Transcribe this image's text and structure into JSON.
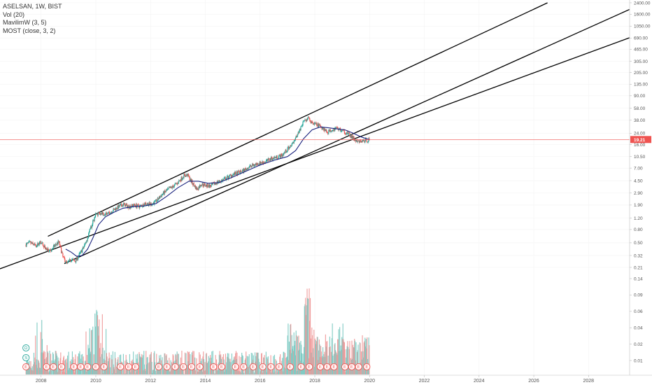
{
  "legend": {
    "symbol": "ASELSAN, 1W, BIST",
    "vol": "Vol (20)",
    "mavilim": "MavilimW (3, 5)",
    "most": "MOST (close, 3, 2)"
  },
  "colors": {
    "up": "#26a69a",
    "down": "#ef5350",
    "ma": "#1a237e",
    "channel": "#000000",
    "price_line": "#ef5350",
    "vol_up": "#80cbc4",
    "vol_down": "#ef9a9a"
  },
  "chart_data": {
    "type": "candlestick",
    "title": "ASELSAN, 1W, BIST",
    "price_axis_labels": [
      "2400.00",
      "1600.00",
      "1050.00",
      "690.00",
      "465.00",
      "305.00",
      "205.00",
      "135.00",
      "90.00",
      "58.00",
      "38.00",
      "24.00",
      "16.00",
      "10.50",
      "7.00",
      "4.50",
      "2.90",
      "1.90",
      "1.20",
      "0.80",
      "0.50",
      "0.32",
      "0.21"
    ],
    "volume_axis_labels": [
      "0.14",
      "0.09",
      "0.06",
      "0.04",
      "0.02",
      "0.01"
    ],
    "x_labels": [
      "2008",
      "2010",
      "2012",
      "2014",
      "2016",
      "2018",
      "2020",
      "2022",
      "2024",
      "2026",
      "2028"
    ],
    "last_price": "19.21",
    "price_scale": "log",
    "x_range": [
      2006.5,
      2029.5
    ],
    "price_path": [
      [
        2007.45,
        0.47
      ],
      [
        2007.6,
        0.5
      ],
      [
        2007.8,
        0.45
      ],
      [
        2008.0,
        0.5
      ],
      [
        2008.15,
        0.42
      ],
      [
        2008.3,
        0.37
      ],
      [
        2008.5,
        0.45
      ],
      [
        2008.65,
        0.52
      ],
      [
        2008.8,
        0.3
      ],
      [
        2008.95,
        0.24
      ],
      [
        2009.1,
        0.28
      ],
      [
        2009.25,
        0.26
      ],
      [
        2009.4,
        0.33
      ],
      [
        2009.55,
        0.42
      ],
      [
        2009.7,
        0.6
      ],
      [
        2009.85,
        0.95
      ],
      [
        2010.0,
        1.35
      ],
      [
        2010.2,
        1.45
      ],
      [
        2010.4,
        1.35
      ],
      [
        2010.6,
        1.55
      ],
      [
        2010.8,
        1.75
      ],
      [
        2011.0,
        1.95
      ],
      [
        2011.2,
        1.8
      ],
      [
        2011.4,
        1.9
      ],
      [
        2011.6,
        1.8
      ],
      [
        2011.8,
        2.0
      ],
      [
        2012.0,
        1.95
      ],
      [
        2012.2,
        2.15
      ],
      [
        2012.4,
        2.7
      ],
      [
        2012.6,
        3.2
      ],
      [
        2012.8,
        3.6
      ],
      [
        2013.0,
        4.2
      ],
      [
        2013.2,
        5.3
      ],
      [
        2013.35,
        5.5
      ],
      [
        2013.5,
        4.3
      ],
      [
        2013.7,
        3.3
      ],
      [
        2013.85,
        4.0
      ],
      [
        2014.0,
        3.8
      ],
      [
        2014.2,
        3.7
      ],
      [
        2014.4,
        4.2
      ],
      [
        2014.6,
        4.5
      ],
      [
        2014.8,
        5.0
      ],
      [
        2015.0,
        5.6
      ],
      [
        2015.2,
        5.9
      ],
      [
        2015.4,
        6.4
      ],
      [
        2015.6,
        7.3
      ],
      [
        2015.8,
        7.9
      ],
      [
        2016.0,
        8.4
      ],
      [
        2016.2,
        8.8
      ],
      [
        2016.4,
        9.8
      ],
      [
        2016.6,
        10.3
      ],
      [
        2016.8,
        11.0
      ],
      [
        2017.0,
        13.5
      ],
      [
        2017.2,
        17.0
      ],
      [
        2017.4,
        25.0
      ],
      [
        2017.6,
        36.0
      ],
      [
        2017.75,
        40.0
      ],
      [
        2017.9,
        34.0
      ],
      [
        2018.1,
        32.0
      ],
      [
        2018.3,
        29.0
      ],
      [
        2018.45,
        25.0
      ],
      [
        2018.6,
        27.0
      ],
      [
        2018.8,
        29.0
      ],
      [
        2019.0,
        26.0
      ],
      [
        2019.2,
        24.0
      ],
      [
        2019.4,
        20.0
      ],
      [
        2019.55,
        17.5
      ],
      [
        2019.7,
        18.0
      ],
      [
        2019.85,
        18.5
      ],
      [
        2020.0,
        19.21
      ]
    ],
    "mavilim_path": [
      [
        2008.9,
        0.4
      ],
      [
        2009.1,
        0.36
      ],
      [
        2009.3,
        0.31
      ],
      [
        2009.5,
        0.32
      ],
      [
        2009.7,
        0.4
      ],
      [
        2009.9,
        0.6
      ],
      [
        2010.1,
        0.95
      ],
      [
        2010.35,
        1.25
      ],
      [
        2010.7,
        1.5
      ],
      [
        2011.0,
        1.7
      ],
      [
        2011.4,
        1.8
      ],
      [
        2011.8,
        1.85
      ],
      [
        2012.2,
        2.0
      ],
      [
        2012.6,
        2.6
      ],
      [
        2013.0,
        3.5
      ],
      [
        2013.4,
        4.4
      ],
      [
        2013.75,
        4.4
      ],
      [
        2014.1,
        4.1
      ],
      [
        2014.5,
        4.2
      ],
      [
        2015.0,
        5.1
      ],
      [
        2015.5,
        6.3
      ],
      [
        2016.0,
        7.8
      ],
      [
        2016.5,
        9.2
      ],
      [
        2017.0,
        10.5
      ],
      [
        2017.3,
        13.0
      ],
      [
        2017.6,
        20.0
      ],
      [
        2017.9,
        27.0
      ],
      [
        2018.2,
        30.0
      ],
      [
        2018.5,
        29.0
      ],
      [
        2018.8,
        28.0
      ],
      [
        2019.1,
        27.0
      ],
      [
        2019.4,
        24.0
      ],
      [
        2019.7,
        21.0
      ],
      [
        2020.0,
        19.0
      ]
    ],
    "channel_lines": [
      {
        "from": [
          2006.5,
          0.2
        ],
        "to": [
          2029.5,
          700.0
        ]
      },
      {
        "from": [
          2008.85,
          0.24
        ],
        "to": [
          2029.5,
          1900.0
        ]
      },
      {
        "from": [
          2008.25,
          0.63
        ],
        "to": [
          2026.5,
          2400.0
        ]
      }
    ],
    "events": [
      {
        "x": 2007.45,
        "label": "D"
      },
      {
        "x": 2007.45,
        "label": "S"
      },
      {
        "x": 2007.45,
        "label": "E"
      },
      {
        "x": 2008.2,
        "label": "E"
      },
      {
        "x": 2008.45,
        "label": "E"
      },
      {
        "x": 2008.75,
        "label": "E"
      },
      {
        "x": 2009.2,
        "label": "E"
      },
      {
        "x": 2009.45,
        "label": "E"
      },
      {
        "x": 2009.7,
        "label": "E"
      },
      {
        "x": 2010.0,
        "label": "E"
      },
      {
        "x": 2010.3,
        "label": "E"
      },
      {
        "x": 2010.9,
        "label": "E"
      },
      {
        "x": 2011.2,
        "label": "E"
      },
      {
        "x": 2011.45,
        "label": "E"
      },
      {
        "x": 2012.3,
        "label": "E"
      },
      {
        "x": 2012.6,
        "label": "E"
      },
      {
        "x": 2012.9,
        "label": "E"
      },
      {
        "x": 2013.2,
        "label": "E"
      },
      {
        "x": 2013.5,
        "label": "E"
      },
      {
        "x": 2013.8,
        "label": "E"
      },
      {
        "x": 2014.3,
        "label": "E"
      },
      {
        "x": 2014.6,
        "label": "E"
      },
      {
        "x": 2015.1,
        "label": "E"
      },
      {
        "x": 2015.4,
        "label": "E"
      },
      {
        "x": 2015.75,
        "label": "E"
      },
      {
        "x": 2016.1,
        "label": "E"
      },
      {
        "x": 2016.4,
        "label": "E"
      },
      {
        "x": 2016.7,
        "label": "E"
      },
      {
        "x": 2017.1,
        "label": "E"
      },
      {
        "x": 2017.5,
        "label": "E"
      },
      {
        "x": 2017.8,
        "label": "E"
      },
      {
        "x": 2018.2,
        "label": "E"
      },
      {
        "x": 2018.45,
        "label": "E"
      },
      {
        "x": 2018.7,
        "label": "E"
      },
      {
        "x": 2019.1,
        "label": "E"
      },
      {
        "x": 2019.35,
        "label": "E"
      },
      {
        "x": 2019.6,
        "label": "E"
      },
      {
        "x": 2019.9,
        "label": "E"
      }
    ]
  }
}
